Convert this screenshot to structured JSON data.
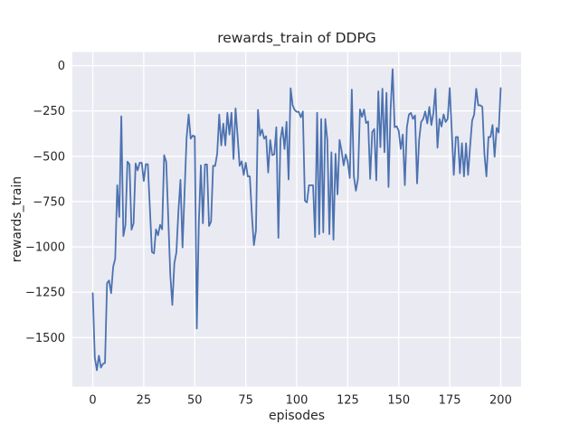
{
  "colors": {
    "figure_bg": "#ffffff",
    "plot_bg": "#eaeaf2",
    "grid": "#ffffff",
    "line": "#4c72b0",
    "text": "#262626"
  },
  "chart_data": {
    "type": "line",
    "title": "rewards_train of DDPG",
    "xlabel": "episodes",
    "ylabel": "rewards_train",
    "grid": true,
    "legend": "none",
    "xlim": [
      -10,
      210
    ],
    "ylim": [
      -1770,
      75
    ],
    "x_ticks": [
      0,
      25,
      50,
      75,
      100,
      125,
      150,
      175,
      200
    ],
    "x_tick_labels": [
      "0",
      "25",
      "50",
      "75",
      "100",
      "125",
      "150",
      "175",
      "200"
    ],
    "y_ticks": [
      0,
      -250,
      -500,
      -750,
      -1000,
      -1250,
      -1500
    ],
    "y_tick_labels": [
      "0",
      "−250",
      "−500",
      "−750",
      "−1000",
      "−1250",
      "−1500"
    ],
    "x_start": 0,
    "x_step": 1,
    "series": [
      {
        "name": "rewards_train",
        "values": [
          -1255,
          -1610,
          -1680,
          -1600,
          -1665,
          -1645,
          -1640,
          -1200,
          -1185,
          -1255,
          -1110,
          -1065,
          -660,
          -835,
          -280,
          -940,
          -880,
          -530,
          -545,
          -905,
          -870,
          -540,
          -578,
          -536,
          -536,
          -636,
          -544,
          -544,
          -786,
          -1028,
          -1036,
          -903,
          -936,
          -878,
          -903,
          -494,
          -530,
          -836,
          -1150,
          -1320,
          -1090,
          -1030,
          -800,
          -630,
          -1003,
          -700,
          -400,
          -270,
          -403,
          -386,
          -390,
          -1450,
          -870,
          -550,
          -870,
          -545,
          -545,
          -885,
          -860,
          -553,
          -553,
          -486,
          -270,
          -440,
          -320,
          -440,
          -260,
          -380,
          -260,
          -515,
          -236,
          -390,
          -553,
          -528,
          -603,
          -536,
          -611,
          -611,
          -820,
          -990,
          -910,
          -244,
          -386,
          -353,
          -403,
          -390,
          -590,
          -411,
          -494,
          -490,
          -340,
          -950,
          -410,
          -340,
          -460,
          -310,
          -628,
          -125,
          -220,
          -245,
          -255,
          -255,
          -285,
          -253,
          -745,
          -755,
          -660,
          -660,
          -660,
          -945,
          -260,
          -930,
          -295,
          -920,
          -295,
          -410,
          -930,
          -478,
          -960,
          -486,
          -710,
          -410,
          -470,
          -550,
          -490,
          -530,
          -620,
          -133,
          -610,
          -690,
          -625,
          -242,
          -283,
          -242,
          -317,
          -308,
          -625,
          -367,
          -350,
          -633,
          -142,
          -450,
          -128,
          -478,
          -150,
          -670,
          -245,
          -20,
          -340,
          -335,
          -360,
          -460,
          -380,
          -660,
          -340,
          -270,
          -261,
          -294,
          -275,
          -650,
          -410,
          -311,
          -294,
          -253,
          -319,
          -228,
          -328,
          -261,
          -128,
          -453,
          -294,
          -336,
          -269,
          -311,
          -294,
          -124,
          -361,
          -603,
          -394,
          -394,
          -594,
          -428,
          -611,
          -428,
          -603,
          -444,
          -303,
          -269,
          -128,
          -219,
          -219,
          -228,
          -486,
          -611,
          -394,
          -394,
          -328,
          -503,
          -344,
          -369,
          -124
        ]
      }
    ]
  }
}
